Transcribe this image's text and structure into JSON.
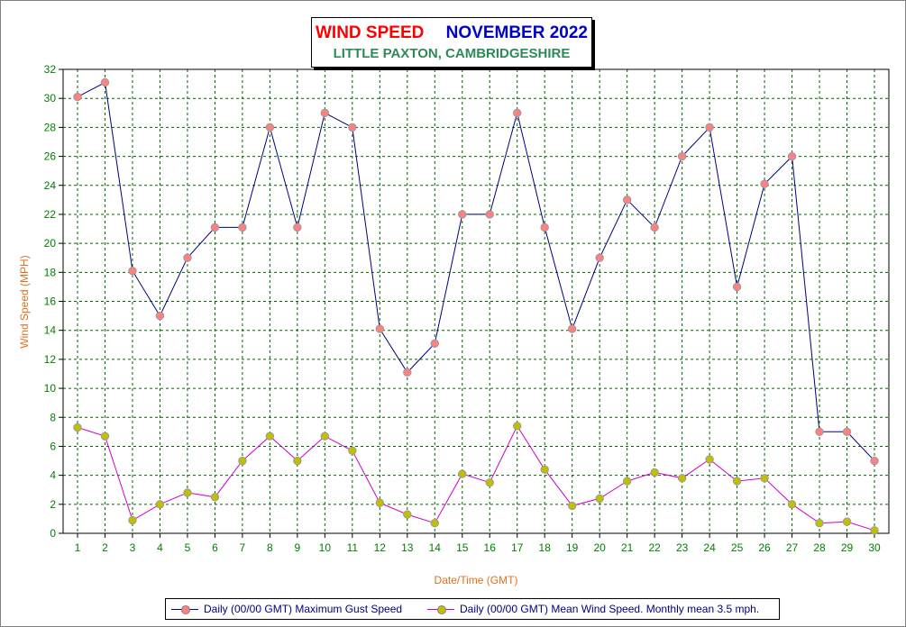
{
  "chart_title": {
    "left": "WIND SPEED",
    "right": "NOVEMBER 2022",
    "subtitle": "LITTLE PAXTON, CAMBRIDGESHIRE"
  },
  "colors": {
    "title_left": "#ff0000",
    "title_right": "#0000cc",
    "subtitle": "#2e8b57",
    "axis_label": "#e07020",
    "tick_label": "#008000",
    "gust_line": "#000080",
    "gust_marker": "#ff8080",
    "mean_line": "#cc00cc",
    "mean_marker": "#c0c000",
    "grid": "#006400",
    "legend_text": "#000080"
  },
  "legend": {
    "gust": "Daily (00/00 GMT) Maximum Gust Speed",
    "mean": "Daily (00/00 GMT) Mean Wind Speed. Monthly mean 3.5 mph."
  },
  "chart_data": {
    "type": "line",
    "xlabel": "Date/Time (GMT)",
    "ylabel": "Wind Speed (MPH)",
    "ylim": [
      0,
      32
    ],
    "yticks": [
      0,
      2,
      4,
      6,
      8,
      10,
      12,
      14,
      16,
      18,
      20,
      22,
      24,
      26,
      28,
      30,
      32
    ],
    "x": [
      1,
      2,
      3,
      4,
      5,
      6,
      7,
      8,
      9,
      10,
      11,
      12,
      13,
      14,
      15,
      16,
      17,
      18,
      19,
      20,
      21,
      22,
      23,
      24,
      25,
      26,
      27,
      28,
      29,
      30
    ],
    "grid": true,
    "legend_position": "bottom",
    "series": [
      {
        "key": "gust",
        "values": [
          30.1,
          31.1,
          18.1,
          15.0,
          19.0,
          21.1,
          21.1,
          28.0,
          21.1,
          29.0,
          28.0,
          14.1,
          11.1,
          13.1,
          22.0,
          22.0,
          29.0,
          21.1,
          14.1,
          19.0,
          23.0,
          21.1,
          26.0,
          28.0,
          17.0,
          24.1,
          26.0,
          7.0,
          7.0,
          5.0
        ]
      },
      {
        "key": "mean",
        "values": [
          7.3,
          6.7,
          0.9,
          2.0,
          2.8,
          2.5,
          5.0,
          6.7,
          5.0,
          6.7,
          5.7,
          2.1,
          1.3,
          0.7,
          4.1,
          3.5,
          7.4,
          4.4,
          1.9,
          2.4,
          3.6,
          4.2,
          3.8,
          5.1,
          3.6,
          3.8,
          2.0,
          0.7,
          0.8,
          0.2
        ]
      }
    ]
  }
}
